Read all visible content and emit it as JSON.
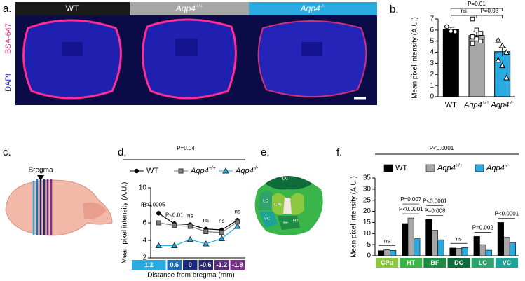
{
  "figure": {
    "panel_a": {
      "label": "a.",
      "columns": [
        {
          "name": "WT"
        },
        {
          "name": "Aqp4",
          "sup": "+/+"
        },
        {
          "name": "Aqp4",
          "sup": "-/-"
        }
      ],
      "stain_labels": [
        "BSA-647",
        "DAPI"
      ]
    },
    "panel_c": {
      "label": "c.",
      "landmark": "Bregma"
    },
    "panel_e": {
      "label": "e.",
      "regions": [
        "DC",
        "LC",
        "CPu",
        "VC",
        "BF",
        "HT"
      ]
    }
  },
  "chart_data": [
    {
      "type": "bar",
      "panel_label": "b.",
      "ylabel": "Mean pixel intensity (A.U.)",
      "categories": [
        "WT",
        "Aqp4",
        "Aqp4"
      ],
      "category_sups": [
        null,
        "+/+",
        "-/-"
      ],
      "values": [
        6.05,
        5.5,
        4.05
      ],
      "errors": [
        0.2,
        0.35,
        0.4
      ],
      "colors": [
        "#000000",
        "#a6a6a6",
        "#29abe2"
      ],
      "points": [
        [
          6.3,
          5.9,
          5.85
        ],
        [
          7.0,
          6.0,
          5.7,
          5.4,
          5.2,
          5.0,
          4.8
        ],
        [
          5.1,
          4.6,
          4.0,
          3.3,
          2.8,
          1.7
        ]
      ],
      "ylim": [
        0,
        7
      ],
      "yticks": [
        0,
        1,
        2,
        3,
        4,
        5,
        6,
        7
      ],
      "annotations": [
        "ns",
        "P=0.03",
        "P=0.01"
      ]
    },
    {
      "type": "line",
      "panel_label": "d.",
      "title": "P=0.04",
      "ylabel": "Mean pixel intensity (A.U.)",
      "xlabel": "Distance from bregma (mm)",
      "categories": [
        "1.2",
        "0.6",
        "0",
        "-0.6",
        "-1.2",
        "-1.8"
      ],
      "category_colors": [
        "#29abe2",
        "#1d6fb8",
        "#1b2a80",
        "#2b2a6e",
        "#5b2c83",
        "#7b2d8f"
      ],
      "series": [
        {
          "name": "WT",
          "color": "#000000",
          "marker": "circle",
          "values": [
            7.1,
            5.9,
            5.8,
            5.3,
            5.2,
            6.3
          ]
        },
        {
          "name": "Aqp4",
          "sup": "+/+",
          "color": "#808080",
          "marker": "square",
          "values": [
            6.0,
            5.7,
            5.6,
            5.0,
            4.9,
            6.1
          ]
        },
        {
          "name": "Aqp4",
          "sup": "-/-",
          "color": "#29abe2",
          "marker": "triangle",
          "values": [
            3.4,
            3.4,
            4.1,
            3.6,
            4.2,
            5.6
          ]
        }
      ],
      "ylim": [
        2,
        10
      ],
      "yticks": [
        2,
        4,
        6,
        8,
        10
      ],
      "annotations": [
        "P<0.0005",
        "P<0.01",
        "ns",
        "ns",
        "ns",
        "ns"
      ]
    },
    {
      "type": "grouped_bar",
      "panel_label": "f.",
      "title": "P<0.0001",
      "ylabel": "Mean pixel intensity (A.U.)",
      "categories": [
        "CPu",
        "HT",
        "BF",
        "DC",
        "LC",
        "VC"
      ],
      "category_colors": [
        "#8dc63f",
        "#39b54a",
        "#1e8a44",
        "#0f6b3a",
        "#2fa36b",
        "#1aa396"
      ],
      "series": [
        {
          "name": "WT",
          "color": "#000000",
          "values": [
            2.3,
            14.5,
            16.3,
            3.5,
            8.7,
            15.0
          ]
        },
        {
          "name": "Aqp4",
          "sup": "+/+",
          "color": "#a6a6a6",
          "values": [
            2.7,
            17.0,
            11.5,
            3.3,
            5.0,
            8.3
          ]
        },
        {
          "name": "Aqp4",
          "sup": "-/-",
          "color": "#29abe2",
          "values": [
            2.4,
            7.7,
            7.2,
            3.7,
            2.5,
            5.8
          ]
        }
      ],
      "ylim": [
        0,
        35
      ],
      "yticks": [
        0,
        5,
        10,
        15,
        20,
        25,
        30,
        35
      ],
      "annotations": [
        [
          "ns"
        ],
        [
          "P=0.007",
          "P<0.0001"
        ],
        [
          "P<0.0001",
          "P=0.008"
        ],
        [
          "ns"
        ],
        [
          "P=0.002"
        ],
        [
          "P<0.0001"
        ]
      ]
    }
  ]
}
